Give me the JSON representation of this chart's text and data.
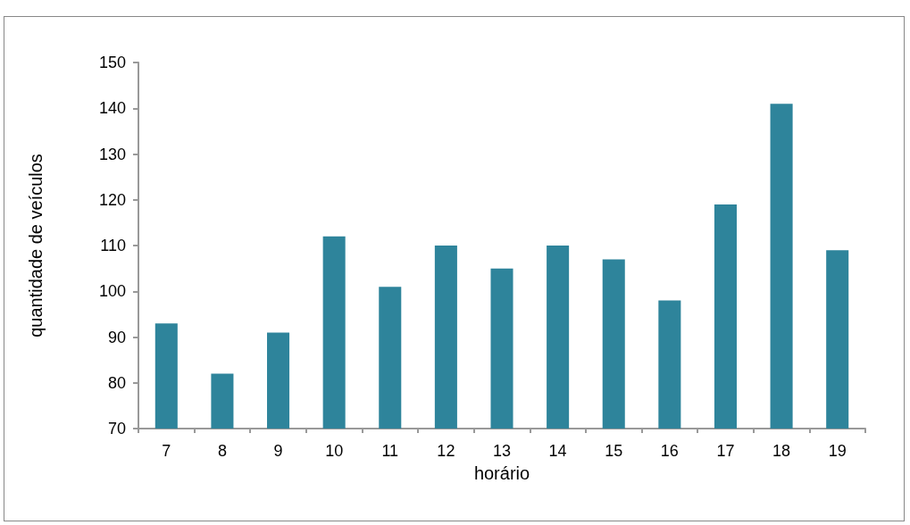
{
  "chart_data": {
    "type": "bar",
    "xlabel": "horário",
    "ylabel": "quantidade de veículos",
    "categories": [
      "7",
      "8",
      "9",
      "10",
      "11",
      "12",
      "13",
      "14",
      "15",
      "16",
      "17",
      "18",
      "19"
    ],
    "values": [
      93,
      82,
      91,
      112,
      101,
      110,
      105,
      110,
      107,
      98,
      119,
      141,
      109
    ],
    "color": "#2e849b",
    "ylim": [
      70,
      150
    ],
    "yticks": [
      70,
      80,
      90,
      100,
      110,
      120,
      130,
      140,
      150
    ],
    "grid": false
  }
}
